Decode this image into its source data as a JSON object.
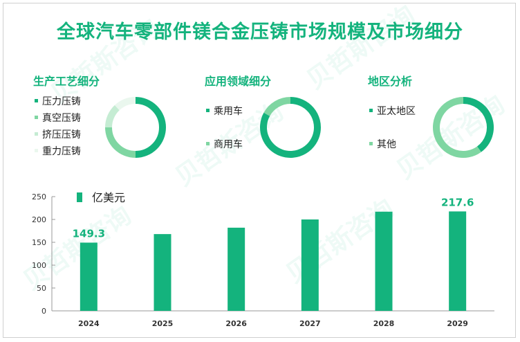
{
  "title": "全球汽车零部件镁合金压铸市场规模及市场细分",
  "watermark": "贝哲斯咨询",
  "segments": [
    {
      "title": "生产工艺细分",
      "items": [
        {
          "label": "压力压铸",
          "value": 50,
          "color": "#14b37d"
        },
        {
          "label": "真空压铸",
          "value": 25,
          "color": "#7fd6a2"
        },
        {
          "label": "挤压压铸",
          "value": 13,
          "color": "#c5ecd3"
        },
        {
          "label": "重力压铸",
          "value": 12,
          "color": "#eaf7ee"
        }
      ]
    },
    {
      "title": "应用领域细分",
      "items": [
        {
          "label": "乘用车",
          "value": 83,
          "color": "#14b37d"
        },
        {
          "label": "商用车",
          "value": 17,
          "color": "#7fd6a2"
        }
      ]
    },
    {
      "title": "地区分析",
      "items": [
        {
          "label": "亚太地区",
          "value": 40,
          "color": "#14b37d"
        },
        {
          "label": "其他",
          "value": 60,
          "color": "#7fd6a2"
        }
      ]
    }
  ],
  "chart_data": {
    "type": "bar",
    "legend": "亿美元",
    "categories": [
      "2024",
      "2025",
      "2026",
      "2027",
      "2028",
      "2029"
    ],
    "values": [
      149.3,
      168,
      182,
      200,
      217,
      217.6
    ],
    "data_labels": {
      "0": "149.3",
      "5": "217.6"
    },
    "ylim": [
      0,
      250
    ],
    "yticks": [
      0,
      50,
      100,
      150,
      200,
      250
    ],
    "color": "#14b37d"
  }
}
